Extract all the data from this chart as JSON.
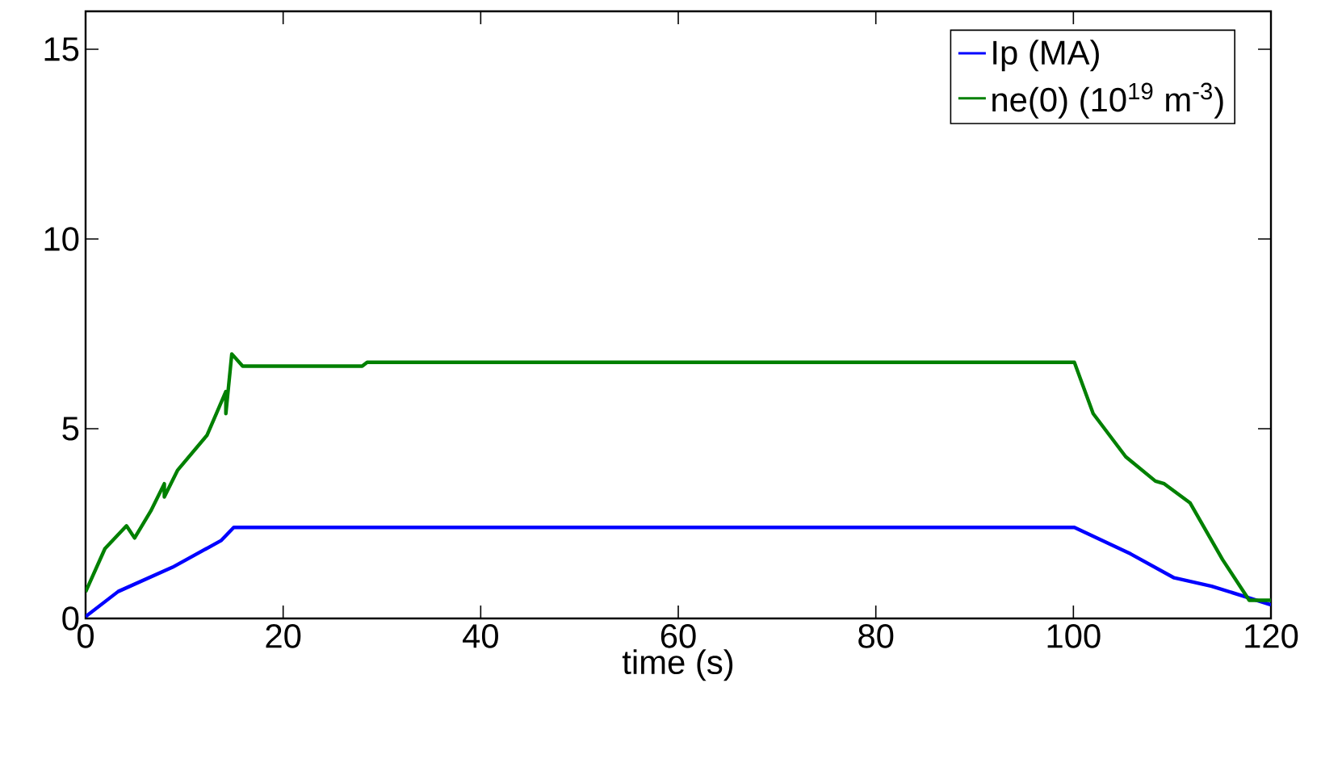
{
  "chart_data": {
    "type": "line",
    "xlabel": "time (s)",
    "xlim": [
      0,
      120
    ],
    "ylim": [
      0,
      16
    ],
    "xticks": [
      0,
      20,
      40,
      60,
      80,
      100,
      120
    ],
    "yticks": [
      0,
      5,
      10,
      15
    ],
    "legend": "top right",
    "grid": false,
    "marker": "none",
    "line_style": "solid",
    "series": [
      {
        "name": "Ip (MA)",
        "color": "#0000ff",
        "x": [
          0,
          3.3,
          8.8,
          13.7,
          15.0,
          100.1,
          105.8,
          110.2,
          114.0,
          120
        ],
        "values": [
          0.05,
          0.71,
          1.35,
          2.05,
          2.4,
          2.4,
          1.7,
          1.07,
          0.85,
          0.36
        ]
      },
      {
        "name": "ne(0) (10$^{19}$ m$^{-3}$)",
        "color": "#008000",
        "x": [
          0,
          1.96,
          4.14,
          4.96,
          6.6,
          7.97,
          7.97,
          9.3,
          12.3,
          14.2,
          14.2,
          14.8,
          15.9,
          28,
          28.5,
          100.1,
          102.0,
          105.3,
          108.3,
          109.2,
          111.8,
          115.1,
          117.8,
          120
        ],
        "values": [
          0.7,
          1.84,
          2.44,
          2.12,
          2.83,
          3.55,
          3.2,
          3.9,
          4.83,
          5.98,
          5.4,
          6.97,
          6.65,
          6.65,
          6.75,
          6.75,
          5.4,
          4.26,
          3.62,
          3.55,
          3.05,
          1.55,
          0.48,
          0.48
        ]
      }
    ]
  }
}
